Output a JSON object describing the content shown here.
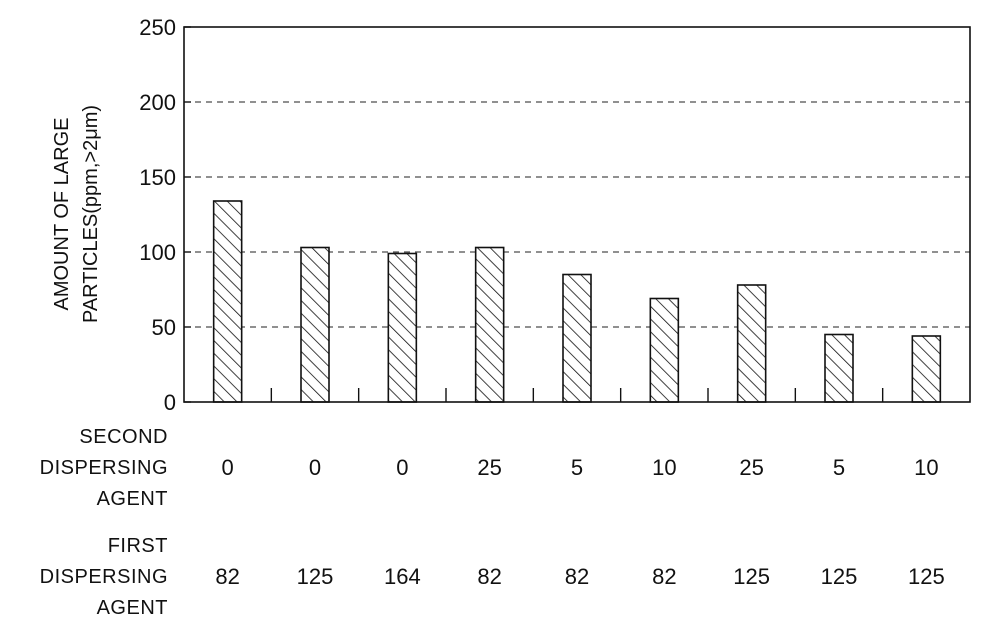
{
  "chart_data": {
    "type": "bar",
    "ylabel_line1": "AMOUNT OF LARGE",
    "ylabel_line2": "PARTICLES(ppm,>2μm)",
    "ylim": [
      0,
      250
    ],
    "yticks": [
      0,
      50,
      100,
      150,
      200,
      250
    ],
    "grid": "horizontal-dashed",
    "hatch": "diagonal",
    "values": [
      134,
      103,
      99,
      103,
      85,
      69,
      78,
      45,
      44
    ],
    "table_rows": [
      {
        "label_lines": [
          "SECOND",
          "DISPERSING",
          "AGENT"
        ],
        "values": [
          "0",
          "0",
          "0",
          "25",
          "5",
          "10",
          "25",
          "5",
          "10"
        ]
      },
      {
        "label_lines": [
          "FIRST",
          "DISPERSING",
          "AGENT"
        ],
        "values": [
          "82",
          "125",
          "164",
          "82",
          "82",
          "82",
          "125",
          "125",
          "125"
        ]
      }
    ]
  }
}
